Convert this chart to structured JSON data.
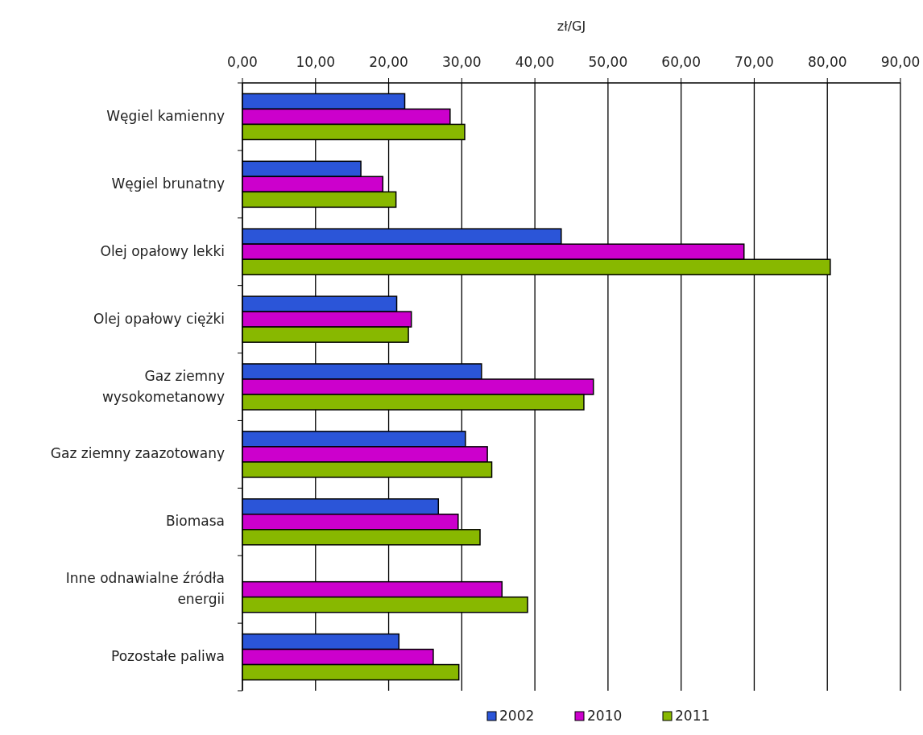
{
  "chart_data": {
    "type": "bar",
    "orientation": "horizontal",
    "xlabel": "zł/GJ",
    "categories": [
      "Węgiel kamienny",
      "Węgiel brunatny",
      "Olej opałowy lekki",
      "Olej opałowy ciężki",
      "Gaz ziemny wysokometanowy",
      "Gaz ziemny zaazotowany",
      "Biomasa",
      "Inne odnawialne źródła energii",
      "Pozostałe paliwa"
    ],
    "series": [
      {
        "name": "2002",
        "color": "#2b55d8",
        "values": [
          22.2,
          16.2,
          43.6,
          21.1,
          32.7,
          30.5,
          26.8,
          null,
          21.4
        ]
      },
      {
        "name": "2010",
        "color": "#cc00cc",
        "values": [
          28.4,
          19.2,
          68.6,
          23.1,
          48.0,
          33.5,
          29.5,
          35.5,
          26.1
        ]
      },
      {
        "name": "2011",
        "color": "#88b800",
        "values": [
          30.4,
          21.0,
          80.4,
          22.7,
          46.7,
          34.1,
          32.5,
          39.0,
          29.6
        ]
      }
    ],
    "xlim": [
      0,
      90
    ],
    "xticks": [
      {
        "value": 0,
        "label": "0,00"
      },
      {
        "value": 10,
        "label": "10,00"
      },
      {
        "value": 20,
        "label": "20,00"
      },
      {
        "value": 30,
        "label": "30,00"
      },
      {
        "value": 40,
        "label": "40,00"
      },
      {
        "value": 50,
        "label": "50,00"
      },
      {
        "value": 60,
        "label": "60,00"
      },
      {
        "value": 70,
        "label": "70,00"
      },
      {
        "value": 80,
        "label": "80,00"
      },
      {
        "value": 90,
        "label": "90,00"
      }
    ],
    "grid": "x",
    "legend": "bottom"
  }
}
